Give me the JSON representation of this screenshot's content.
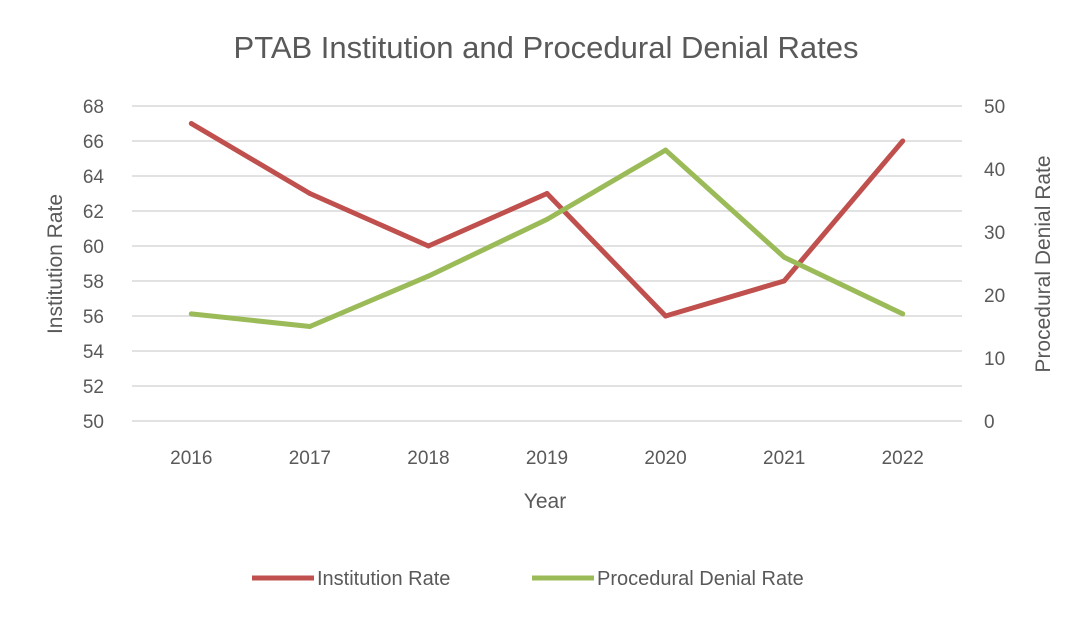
{
  "chart_data": {
    "type": "line",
    "title": "PTAB Institution and Procedural Denial Rates",
    "xlabel": "Year",
    "ylabel": "Institution Rate",
    "y2label": "Procedural Denial Rate",
    "categories": [
      "2016",
      "2017",
      "2018",
      "2019",
      "2020",
      "2021",
      "2022"
    ],
    "ylim": [
      50,
      68
    ],
    "yticks": [
      50,
      52,
      54,
      56,
      58,
      60,
      62,
      64,
      66,
      68
    ],
    "y2lim": [
      0,
      50
    ],
    "y2ticks": [
      0,
      10,
      20,
      30,
      40,
      50
    ],
    "grid": true,
    "legend_position": "bottom",
    "series": [
      {
        "name": "Institution Rate",
        "axis": "left",
        "color": "#C0504D",
        "values": [
          67,
          63,
          60,
          63,
          56,
          58,
          66
        ]
      },
      {
        "name": "Procedural Denial Rate",
        "axis": "right",
        "color": "#9BBB59",
        "values": [
          17,
          15,
          23,
          32,
          43,
          26,
          17
        ]
      }
    ]
  }
}
